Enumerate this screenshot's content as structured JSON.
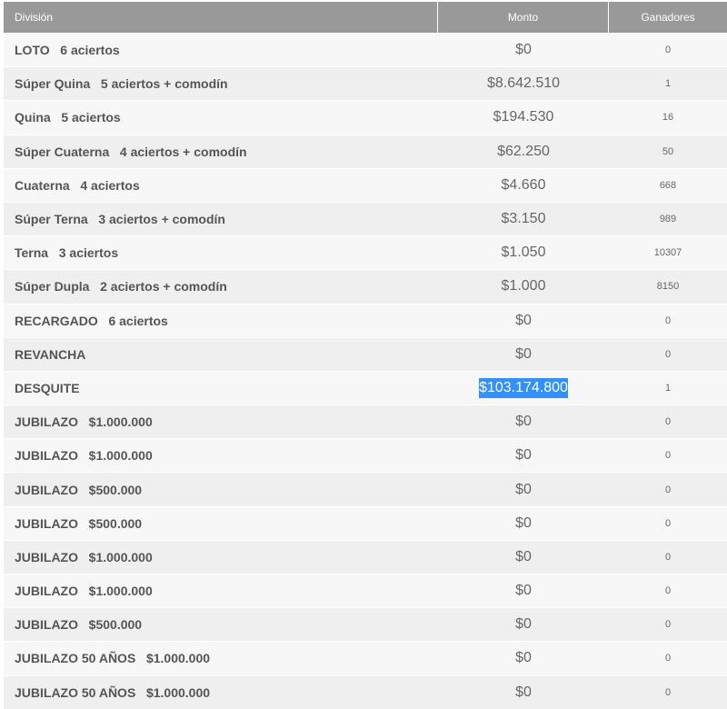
{
  "header": {
    "division": "División",
    "monto": "Monto",
    "ganadores": "Ganadores"
  },
  "colors": {
    "header_bg": "#999999",
    "selection": "#3390ff"
  },
  "rows": [
    {
      "division": "LOTO   6 aciertos",
      "monto": "$0",
      "ganadores": "0"
    },
    {
      "division": "Súper Quina   5 aciertos + comodín",
      "monto": "$8.642.510",
      "ganadores": "1"
    },
    {
      "division": "Quina   5 aciertos",
      "monto": "$194.530",
      "ganadores": "16"
    },
    {
      "division": "Súper Cuaterna   4 aciertos + comodín",
      "monto": "$62.250",
      "ganadores": "50"
    },
    {
      "division": "Cuaterna   4 aciertos",
      "monto": "$4.660",
      "ganadores": "668"
    },
    {
      "division": "Súper Terna   3 aciertos + comodín",
      "monto": "$3.150",
      "ganadores": "989"
    },
    {
      "division": "Terna   3 aciertos",
      "monto": "$1.050",
      "ganadores": "10307"
    },
    {
      "division": "Súper Dupla   2 aciertos + comodín",
      "monto": "$1.000",
      "ganadores": "8150"
    },
    {
      "division": "RECARGADO   6 aciertos",
      "monto": "$0",
      "ganadores": "0"
    },
    {
      "division": "REVANCHA",
      "monto": "$0",
      "ganadores": "0"
    },
    {
      "division": "DESQUITE",
      "monto": "$103.174.800",
      "ganadores": "1",
      "highlight": true
    },
    {
      "division": "JUBILAZO   $1.000.000",
      "monto": "$0",
      "ganadores": "0"
    },
    {
      "division": "JUBILAZO   $1.000.000",
      "monto": "$0",
      "ganadores": "0"
    },
    {
      "division": "JUBILAZO   $500.000",
      "monto": "$0",
      "ganadores": "0"
    },
    {
      "division": "JUBILAZO   $500.000",
      "monto": "$0",
      "ganadores": "0"
    },
    {
      "division": "JUBILAZO   $1.000.000",
      "monto": "$0",
      "ganadores": "0"
    },
    {
      "division": "JUBILAZO   $1.000.000",
      "monto": "$0",
      "ganadores": "0"
    },
    {
      "division": "JUBILAZO   $500.000",
      "monto": "$0",
      "ganadores": "0"
    },
    {
      "division": "JUBILAZO 50 AÑOS   $1.000.000",
      "monto": "$0",
      "ganadores": "0"
    },
    {
      "division": "JUBILAZO 50 AÑOS   $1.000.000",
      "monto": "$0",
      "ganadores": "0"
    }
  ]
}
